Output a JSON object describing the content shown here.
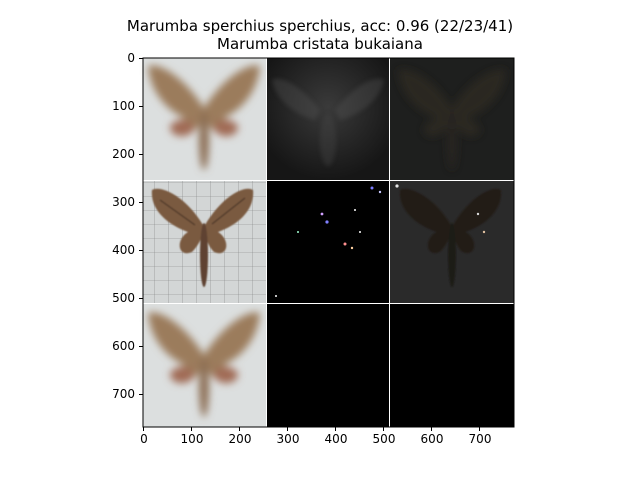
{
  "figure": {
    "title_line_1": "Marumba sperchius sperchius, acc: 0.96 (22/23/41)",
    "title_line_2": "Marumba cristata bukaiana"
  },
  "axes": {
    "y_ticks": [
      "0",
      "100",
      "200",
      "300",
      "400",
      "500",
      "600",
      "700"
    ],
    "x_ticks": [
      "0",
      "100",
      "200",
      "300",
      "400",
      "500",
      "600",
      "700"
    ]
  },
  "grid": {
    "rows": 3,
    "cols": 3,
    "panels": [
      [
        "moth-reconstruction-blurry",
        "saliency-map-dark",
        "overlay-dark"
      ],
      [
        "moth-specimen-photo",
        "saliency-map-sparse",
        "overlay-specimen-dark"
      ],
      [
        "moth-reconstruction-blurry",
        "black-panel",
        "black-panel"
      ]
    ]
  },
  "colors": {
    "background_light": "#d9dcdd",
    "moth_brown": "#8a6a4e",
    "panel_black": "#000000"
  }
}
